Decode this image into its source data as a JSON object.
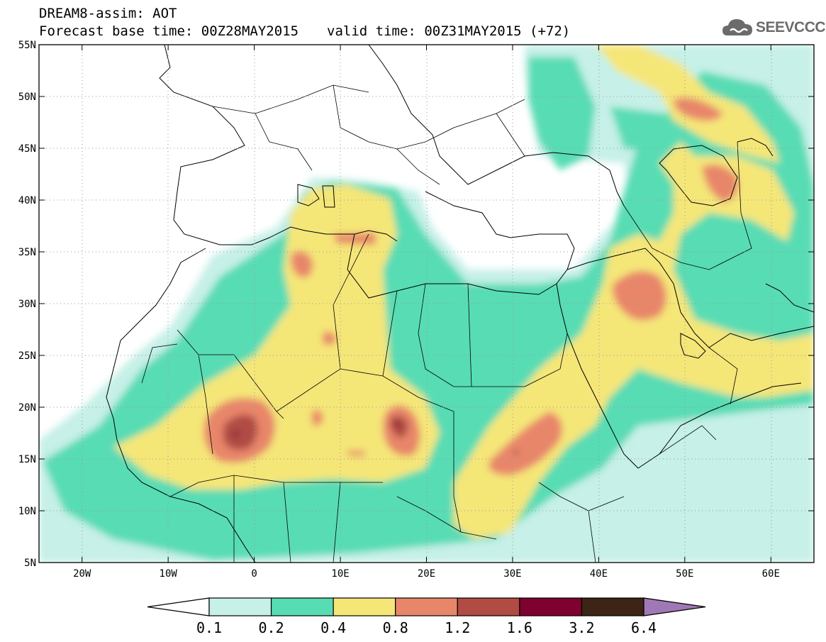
{
  "header": {
    "line1": "DREAM8-assim: AOT",
    "base_time": "Forecast base time: 00Z28MAY2015",
    "valid_time": "valid time: 00Z31MAY2015 (+72)"
  },
  "logo": {
    "text": "SEEVCCC",
    "icon": "cloud-icon"
  },
  "map": {
    "lon_range": [
      -25,
      65
    ],
    "lat_range": [
      5,
      55
    ],
    "lon_ticks": [
      {
        "v": -20,
        "label": "20W"
      },
      {
        "v": -10,
        "label": "10W"
      },
      {
        "v": 0,
        "label": "0"
      },
      {
        "v": 10,
        "label": "10E"
      },
      {
        "v": 20,
        "label": "20E"
      },
      {
        "v": 30,
        "label": "30E"
      },
      {
        "v": 40,
        "label": "40E"
      },
      {
        "v": 50,
        "label": "50E"
      },
      {
        "v": 60,
        "label": "60E"
      }
    ],
    "lat_ticks": [
      {
        "v": 5,
        "label": "5N"
      },
      {
        "v": 10,
        "label": "10N"
      },
      {
        "v": 15,
        "label": "15N"
      },
      {
        "v": 20,
        "label": "20N"
      },
      {
        "v": 25,
        "label": "25N"
      },
      {
        "v": 30,
        "label": "30N"
      },
      {
        "v": 35,
        "label": "35N"
      },
      {
        "v": 40,
        "label": "40N"
      },
      {
        "v": 45,
        "label": "45N"
      },
      {
        "v": 50,
        "label": "50N"
      },
      {
        "v": 55,
        "label": "55N"
      }
    ]
  },
  "colorbar": {
    "levels": [
      "0.1",
      "0.2",
      "0.4",
      "0.8",
      "1.2",
      "1.6",
      "3.2",
      "6.4"
    ],
    "colors": [
      "#c6f0e8",
      "#58dcb4",
      "#f5e678",
      "#e8866a",
      "#b04c44",
      "#7e0230",
      "#3c2416",
      "#a078b4"
    ],
    "low_color": "#ffffff",
    "high_color": "#a078b4"
  }
}
